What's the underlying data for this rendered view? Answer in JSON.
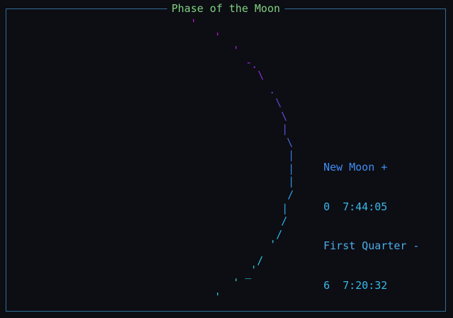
{
  "window": {
    "title": "Phase of the Moon"
  },
  "info": {
    "new_moon_label": "New Moon +",
    "new_moon_time": "0  7:44:05",
    "first_quarter_label": "First Quarter -",
    "first_quarter_time": "6  7:20:32"
  },
  "moon": {
    "glyphs": [
      {
        "ch": "'",
        "color": "#c21fd8"
      },
      {
        "ch": "'",
        "color": "#b81fd6"
      },
      {
        "ch": "'",
        "color": "#a821d4"
      },
      {
        "ch": "-",
        "color": "#9a26d2"
      },
      {
        "ch": ".",
        "color": "#9229d2"
      },
      {
        "ch": "\\",
        "color": "#8330d0"
      },
      {
        "ch": ".",
        "color": "#7238cf"
      },
      {
        "ch": "\\",
        "color": "#6742d0"
      },
      {
        "ch": "\\",
        "color": "#5a4ed2"
      },
      {
        "ch": "|",
        "color": "#505ad4"
      },
      {
        "ch": "\\",
        "color": "#4567d6"
      },
      {
        "ch": "|",
        "color": "#3d75d8"
      },
      {
        "ch": "|",
        "color": "#3882da"
      },
      {
        "ch": "|",
        "color": "#348fdc"
      },
      {
        "ch": "/",
        "color": "#309bde"
      },
      {
        "ch": "|",
        "color": "#2ea6df"
      },
      {
        "ch": "/",
        "color": "#2cb0df"
      },
      {
        "ch": "/",
        "color": "#2bb9df"
      },
      {
        "ch": "'",
        "color": "#2ac1dd"
      },
      {
        "ch": "/",
        "color": "#2ac7da"
      },
      {
        "ch": "_",
        "color": "#29ccd6"
      },
      {
        "ch": "'",
        "color": "#29cfd3"
      },
      {
        "ch": "'",
        "color": "#28d1d0"
      },
      {
        "ch": "'",
        "color": "#28d3cc"
      }
    ]
  }
}
